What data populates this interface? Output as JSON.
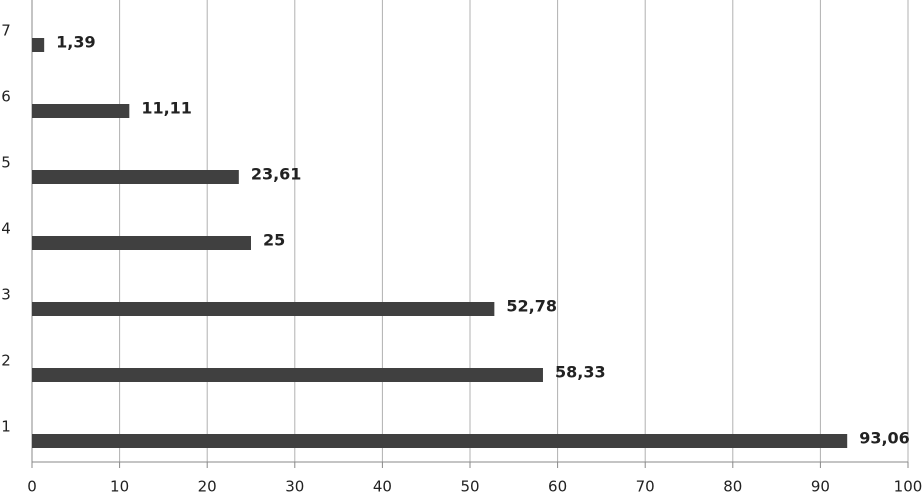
{
  "chart_data": {
    "type": "bar",
    "orientation": "horizontal",
    "categories": [
      "1",
      "2",
      "3",
      "4",
      "5",
      "6",
      "7"
    ],
    "values": [
      93.06,
      58.33,
      52.78,
      25,
      23.61,
      11.11,
      1.39
    ],
    "value_labels": [
      "93,06",
      "58,33",
      "52,78",
      "25",
      "23,61",
      "11,11",
      "1,39"
    ],
    "color": "#404040",
    "xlim": [
      0,
      100
    ],
    "xticks": [
      0,
      10,
      20,
      30,
      40,
      50,
      60,
      70,
      80,
      90,
      100
    ],
    "grid": true
  }
}
